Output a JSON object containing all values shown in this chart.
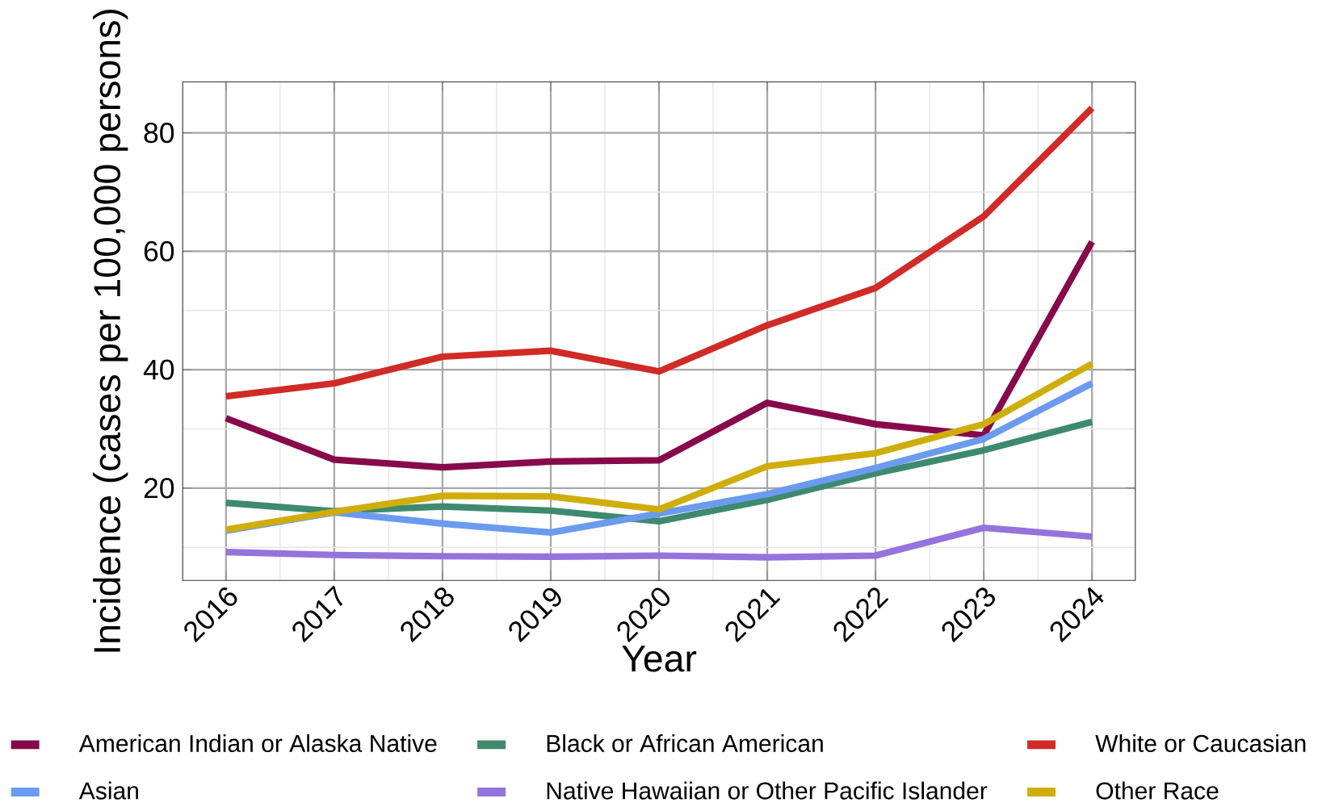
{
  "chart_data": {
    "type": "line",
    "xlabel": "Year",
    "ylabel": "Incidence (cases per 100,000 persons)",
    "x": [
      2016,
      2017,
      2018,
      2019,
      2020,
      2021,
      2022,
      2023,
      2024
    ],
    "xlim": [
      2015.6,
      2024.4
    ],
    "ylim": [
      4.4,
      88.6
    ],
    "xticks": [
      2016,
      2017,
      2018,
      2019,
      2020,
      2021,
      2022,
      2023,
      2024
    ],
    "yticks": [
      20,
      40,
      60,
      80
    ],
    "grid": true,
    "legend": "bottom",
    "line_style": "solid",
    "series": [
      {
        "name": "American Indian or Alaska Native",
        "color": "#870a4b",
        "values": [
          31.8,
          24.8,
          23.5,
          24.5,
          24.7,
          34.4,
          30.8,
          28.9,
          61.6
        ]
      },
      {
        "name": "Black or African American",
        "color": "#3e8a6e",
        "values": [
          17.5,
          16.1,
          16.9,
          16.2,
          14.4,
          18.0,
          22.5,
          26.4,
          31.2
        ]
      },
      {
        "name": "White or Caucasian",
        "color": "#d02b27",
        "values": [
          35.5,
          37.7,
          42.2,
          43.2,
          39.7,
          47.5,
          53.8,
          65.9,
          84.2
        ]
      },
      {
        "name": "Asian",
        "color": "#6a9bef",
        "values": [
          12.8,
          15.9,
          14.0,
          12.5,
          15.7,
          19.0,
          23.4,
          28.3,
          37.7
        ]
      },
      {
        "name": "Native Hawaiian or Other Pacific Islander",
        "color": "#9473dc",
        "values": [
          9.2,
          8.7,
          8.5,
          8.4,
          8.6,
          8.3,
          8.6,
          13.3,
          11.8
        ]
      },
      {
        "name": "Other Race",
        "color": "#cfae0b",
        "values": [
          13.0,
          16.0,
          18.7,
          18.6,
          16.4,
          23.7,
          25.9,
          30.8,
          41.0
        ]
      }
    ]
  }
}
